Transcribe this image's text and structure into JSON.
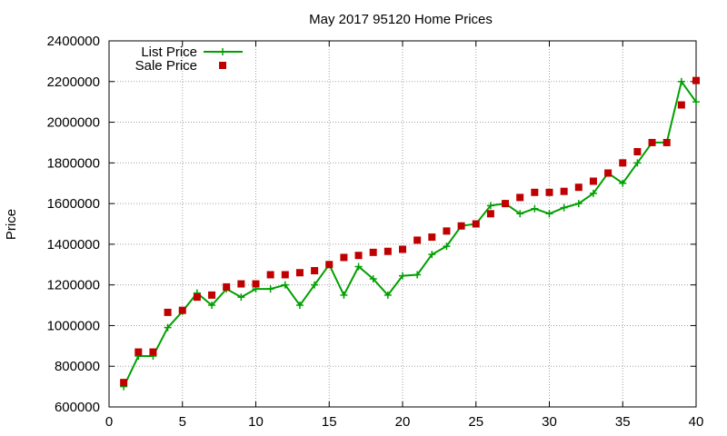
{
  "chart_data": {
    "type": "line",
    "title": "May 2017 95120 Home Prices",
    "xlabel": "",
    "ylabel": "Price",
    "xlim": [
      0,
      40
    ],
    "ylim": [
      600000,
      2400000
    ],
    "xticks": [
      0,
      5,
      10,
      15,
      20,
      25,
      30,
      35,
      40
    ],
    "yticks": [
      600000,
      800000,
      1000000,
      1200000,
      1400000,
      1600000,
      1800000,
      2000000,
      2200000,
      2400000
    ],
    "grid": true,
    "legend_position": "top-left",
    "colors": {
      "list": "#00a000",
      "sale": "#c00000"
    },
    "series": [
      {
        "name": "List Price",
        "kind": "line-with-plus-markers",
        "x": [
          1,
          2,
          3,
          4,
          5,
          6,
          7,
          8,
          9,
          10,
          11,
          12,
          13,
          14,
          15,
          16,
          17,
          18,
          19,
          20,
          21,
          22,
          23,
          24,
          25,
          26,
          27,
          28,
          29,
          30,
          31,
          32,
          33,
          34,
          35,
          36,
          37,
          38,
          39,
          40
        ],
        "values": [
          700000,
          850000,
          850000,
          990000,
          1070000,
          1160000,
          1100000,
          1180000,
          1140000,
          1180000,
          1180000,
          1200000,
          1100000,
          1200000,
          1300000,
          1150000,
          1290000,
          1230000,
          1150000,
          1245000,
          1250000,
          1350000,
          1390000,
          1490000,
          1500000,
          1590000,
          1600000,
          1550000,
          1575000,
          1550000,
          1580000,
          1600000,
          1650000,
          1750000,
          1700000,
          1800000,
          1900000,
          1900000,
          2200000,
          2100000
        ]
      },
      {
        "name": "Sale Price",
        "kind": "square-markers",
        "x": [
          1,
          2,
          3,
          4,
          5,
          6,
          7,
          8,
          9,
          10,
          11,
          12,
          13,
          14,
          15,
          16,
          17,
          18,
          19,
          20,
          21,
          22,
          23,
          24,
          25,
          26,
          27,
          28,
          29,
          30,
          31,
          32,
          33,
          34,
          35,
          36,
          37,
          38,
          39,
          40
        ],
        "values": [
          720000,
          870000,
          870000,
          1065000,
          1075000,
          1140000,
          1150000,
          1190000,
          1205000,
          1205000,
          1250000,
          1250000,
          1260000,
          1270000,
          1300000,
          1335000,
          1345000,
          1360000,
          1365000,
          1375000,
          1420000,
          1435000,
          1465000,
          1490000,
          1500000,
          1550000,
          1600000,
          1630000,
          1655000,
          1655000,
          1660000,
          1680000,
          1710000,
          1750000,
          1800000,
          1855000,
          1900000,
          1900000,
          2085000,
          2205000
        ]
      }
    ]
  }
}
